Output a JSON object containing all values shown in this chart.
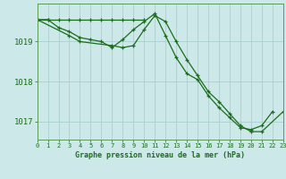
{
  "title": "Graphe pression niveau de la mer (hPa)",
  "bg_color": "#cce8e8",
  "plot_bg_color": "#cce8e8",
  "grid_color": "#aad0d0",
  "line_color": "#1a6e1a",
  "hours": [
    0,
    1,
    2,
    3,
    4,
    5,
    6,
    7,
    8,
    9,
    10,
    11,
    12,
    13,
    14,
    15,
    16,
    17,
    18,
    19,
    20,
    21,
    22,
    23
  ],
  "series1": [
    1019.55,
    1019.55,
    1019.35,
    1019.25,
    1019.1,
    1019.05,
    1019.0,
    1018.85,
    1019.05,
    1019.3,
    1019.5,
    1019.7,
    1019.15,
    1018.6,
    1018.2,
    1018.05,
    1017.65,
    1017.35,
    1017.1,
    1016.85,
    1016.8,
    1016.9,
    1017.25,
    null
  ],
  "series2_x": [
    0,
    3,
    4,
    7,
    8,
    9,
    10,
    11,
    12,
    13,
    14,
    15,
    16,
    17,
    18,
    19,
    20,
    21,
    23
  ],
  "series2_y": [
    1019.55,
    1019.15,
    1019.0,
    1018.9,
    1018.85,
    1018.9,
    1019.3,
    1019.65,
    1019.5,
    1019.0,
    1018.55,
    1018.15,
    1017.75,
    1017.5,
    1017.2,
    1016.9,
    1016.75,
    1016.75,
    1017.25
  ],
  "series3_x": [
    0,
    1,
    2,
    3,
    4,
    5,
    6,
    7,
    8,
    9,
    10
  ],
  "series3_y": [
    1019.55,
    1019.55,
    1019.55,
    1019.55,
    1019.55,
    1019.55,
    1019.55,
    1019.55,
    1019.55,
    1019.55,
    1019.55
  ],
  "ylim": [
    1016.55,
    1019.95
  ],
  "yticks": [
    1017,
    1018,
    1019
  ],
  "xlim": [
    0,
    23
  ],
  "xticks": [
    0,
    1,
    2,
    3,
    4,
    5,
    6,
    7,
    8,
    9,
    10,
    11,
    12,
    13,
    14,
    15,
    16,
    17,
    18,
    19,
    20,
    21,
    22,
    23
  ],
  "xlabel_fontsize": 6.0,
  "ytick_fontsize": 6.5,
  "xtick_fontsize": 5.0
}
